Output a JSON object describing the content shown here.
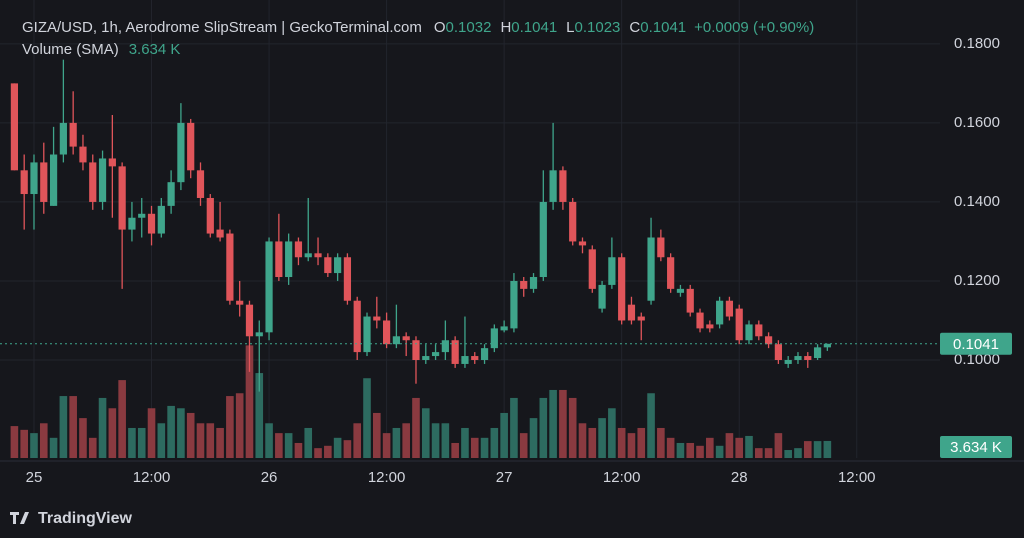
{
  "chart_data": {
    "type": "candlestick",
    "title": "GIZA/USD, 1h, Aerodrome SlipStream | GeckoTerminal.com",
    "ohlc_labels": [
      "O",
      "H",
      "L",
      "C"
    ],
    "change": "+0.0009 (+0.90%)",
    "volume_title": "Volume (SMA)",
    "volume_legend": "3.634 K",
    "x": [
      -2,
      -1,
      0,
      1,
      2,
      3,
      4,
      5,
      6,
      7,
      8,
      9,
      10,
      11,
      12,
      13,
      14,
      15,
      16,
      17,
      18,
      19,
      20,
      21,
      22,
      23,
      24,
      25,
      26,
      27,
      28,
      29,
      30,
      31,
      32,
      33,
      34,
      35,
      36,
      37,
      38,
      39,
      40,
      41,
      42,
      43,
      44,
      45,
      46,
      47,
      48,
      49,
      50,
      51,
      52,
      53,
      54,
      55,
      56,
      57,
      58,
      59,
      60,
      61,
      62,
      63,
      64,
      65,
      66,
      67,
      68,
      69,
      70,
      71,
      72,
      73,
      74,
      75,
      76,
      77,
      78,
      79,
      80,
      81
    ],
    "open": [
      0.17,
      0.148,
      0.142,
      0.15,
      0.139,
      0.152,
      0.16,
      0.154,
      0.15,
      0.14,
      0.151,
      0.149,
      0.133,
      0.136,
      0.137,
      0.132,
      0.139,
      0.145,
      0.16,
      0.148,
      0.141,
      0.133,
      0.132,
      0.115,
      0.114,
      0.106,
      0.107,
      0.13,
      0.121,
      0.13,
      0.126,
      0.127,
      0.126,
      0.122,
      0.126,
      0.115,
      0.102,
      0.111,
      0.11,
      0.104,
      0.106,
      0.105,
      0.1,
      0.101,
      0.102,
      0.105,
      0.099,
      0.101,
      0.1,
      0.103,
      0.1075,
      0.108,
      0.12,
      0.118,
      0.121,
      0.14,
      0.148,
      0.14,
      0.13,
      0.128,
      0.113,
      0.119,
      0.126,
      0.114,
      0.111,
      0.115,
      0.131,
      0.126,
      0.117,
      0.118,
      0.112,
      0.109,
      0.109,
      0.115,
      0.113,
      0.105,
      0.109,
      0.106,
      0.104,
      0.099,
      0.1,
      0.101,
      0.1005,
      0.1032
    ],
    "high": [
      0.17,
      0.152,
      0.152,
      0.155,
      0.159,
      0.176,
      0.168,
      0.157,
      0.152,
      0.153,
      0.162,
      0.15,
      0.14,
      0.141,
      0.139,
      0.141,
      0.148,
      0.165,
      0.161,
      0.15,
      0.142,
      0.14,
      0.133,
      0.12,
      0.115,
      0.11,
      0.131,
      0.137,
      0.132,
      0.131,
      0.141,
      0.131,
      0.127,
      0.127,
      0.127,
      0.116,
      0.112,
      0.116,
      0.112,
      0.114,
      0.107,
      0.106,
      0.104,
      0.104,
      0.11,
      0.106,
      0.111,
      0.102,
      0.104,
      0.109,
      0.11,
      0.122,
      0.121,
      0.122,
      0.148,
      0.16,
      0.149,
      0.141,
      0.131,
      0.129,
      0.12,
      0.131,
      0.127,
      0.116,
      0.112,
      0.136,
      0.133,
      0.127,
      0.119,
      0.119,
      0.113,
      0.11,
      0.116,
      0.116,
      0.114,
      0.11,
      0.11,
      0.107,
      0.105,
      0.101,
      0.102,
      0.102,
      0.104,
      0.1041
    ],
    "low": [
      0.148,
      0.133,
      0.133,
      0.137,
      0.139,
      0.15,
      0.152,
      0.148,
      0.138,
      0.138,
      0.136,
      0.118,
      0.13,
      0.131,
      0.129,
      0.131,
      0.137,
      0.143,
      0.146,
      0.139,
      0.131,
      0.13,
      0.114,
      0.111,
      0.097,
      0.092,
      0.105,
      0.12,
      0.119,
      0.124,
      0.125,
      0.124,
      0.121,
      0.12,
      0.114,
      0.1,
      0.101,
      0.108,
      0.103,
      0.103,
      0.101,
      0.094,
      0.099,
      0.1,
      0.1,
      0.098,
      0.098,
      0.099,
      0.099,
      0.102,
      0.107,
      0.107,
      0.116,
      0.117,
      0.12,
      0.138,
      0.138,
      0.129,
      0.127,
      0.117,
      0.112,
      0.118,
      0.109,
      0.109,
      0.105,
      0.114,
      0.125,
      0.117,
      0.116,
      0.111,
      0.107,
      0.107,
      0.108,
      0.11,
      0.104,
      0.104,
      0.105,
      0.103,
      0.099,
      0.098,
      0.099,
      0.098,
      0.1,
      0.1023
    ],
    "close": [
      0.148,
      0.142,
      0.15,
      0.14,
      0.152,
      0.16,
      0.154,
      0.15,
      0.14,
      0.151,
      0.149,
      0.133,
      0.136,
      0.137,
      0.132,
      0.139,
      0.145,
      0.16,
      0.148,
      0.141,
      0.132,
      0.131,
      0.115,
      0.114,
      0.106,
      0.107,
      0.13,
      0.121,
      0.13,
      0.126,
      0.127,
      0.126,
      0.122,
      0.126,
      0.115,
      0.102,
      0.111,
      0.11,
      0.104,
      0.106,
      0.105,
      0.1,
      0.101,
      0.102,
      0.105,
      0.099,
      0.101,
      0.1,
      0.103,
      0.108,
      0.1085,
      0.12,
      0.118,
      0.121,
      0.14,
      0.148,
      0.14,
      0.13,
      0.129,
      0.118,
      0.119,
      0.126,
      0.11,
      0.11,
      0.11,
      0.131,
      0.126,
      0.118,
      0.118,
      0.112,
      0.108,
      0.108,
      0.115,
      0.111,
      0.105,
      0.109,
      0.106,
      0.104,
      0.1,
      0.1,
      0.101,
      0.1,
      0.1032,
      0.1041
    ],
    "volume": [
      6.8,
      6.0,
      5.3,
      7.4,
      4.3,
      13.2,
      13.2,
      8.5,
      4.3,
      12.8,
      10.6,
      16.6,
      6.4,
      6.4,
      10.6,
      7.4,
      11.1,
      10.6,
      9.6,
      7.4,
      7.4,
      6.4,
      13.2,
      13.8,
      24.0,
      18.1,
      7.4,
      5.3,
      5.3,
      3.2,
      6.4,
      2.1,
      2.6,
      4.3,
      3.8,
      7.4,
      17.0,
      9.6,
      5.3,
      6.4,
      7.4,
      12.8,
      10.6,
      7.4,
      7.4,
      3.2,
      6.4,
      4.3,
      4.3,
      6.4,
      9.6,
      12.8,
      5.3,
      8.5,
      12.8,
      14.5,
      14.5,
      12.8,
      7.4,
      6.4,
      8.5,
      10.6,
      6.4,
      5.3,
      6.4,
      13.8,
      6.4,
      4.3,
      3.2,
      3.2,
      2.6,
      4.3,
      2.6,
      5.3,
      4.3,
      4.7,
      2.1,
      2.1,
      5.3,
      1.7,
      2.1,
      3.6,
      3.6,
      3.634
    ],
    "up_color": "#3fa58b",
    "down_color": "#e0555a",
    "volume_up_color": "#2d6b60",
    "volume_down_color": "#8a3a40",
    "xlim": [
      -3.47,
      92.5
    ],
    "xticks": [
      {
        "value": 0,
        "label": "25"
      },
      {
        "value": 12,
        "label": "12:00"
      },
      {
        "value": 24,
        "label": "26"
      },
      {
        "value": 36,
        "label": "12:00"
      },
      {
        "value": 48,
        "label": "27"
      },
      {
        "value": 60,
        "label": "12:00"
      },
      {
        "value": 72,
        "label": "28"
      },
      {
        "value": 84,
        "label": "12:00"
      }
    ],
    "ylim": [
      0.0752,
      0.1911
    ],
    "yticks": [
      {
        "value": 0.18,
        "label": "0.1800"
      },
      {
        "value": 0.16,
        "label": "0.1600"
      },
      {
        "value": 0.14,
        "label": "0.1400"
      },
      {
        "value": 0.12,
        "label": "0.1200"
      },
      {
        "value": 0.1,
        "label": "0.1000"
      }
    ],
    "volume_lim": [
      0,
      26
    ],
    "grid": true
  },
  "footer": {
    "brand": "TradingView"
  }
}
